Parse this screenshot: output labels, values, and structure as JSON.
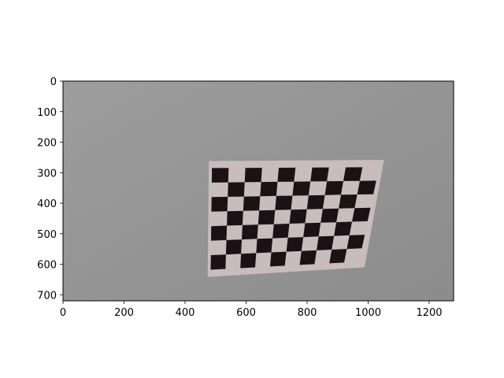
{
  "figure": {
    "image_description_tag": "wall-with-checkerboard-calibration-pattern",
    "x_ticks": [
      "0",
      "200",
      "400",
      "600",
      "800",
      "1000",
      "1200"
    ],
    "y_ticks": [
      "0",
      "100",
      "200",
      "300",
      "400",
      "500",
      "600",
      "700"
    ],
    "x_range": [
      0,
      1280
    ],
    "y_range": [
      0,
      720
    ],
    "x_tick_values": [
      0,
      200,
      400,
      600,
      800,
      1000,
      1200
    ],
    "y_tick_values": [
      0,
      100,
      200,
      300,
      400,
      500,
      600,
      700
    ]
  },
  "photo": {
    "wall_color": "#9a9a9b",
    "paper_color": "#c8bcbe",
    "square_color": "#1a1214",
    "board_corners_data_units": {
      "top_left": [
        478,
        262
      ],
      "top_right": [
        1052,
        258
      ],
      "bottom_right": [
        988,
        610
      ],
      "bottom_left": [
        474,
        642
      ]
    },
    "grid_corners_data_units": {
      "top_left": [
        488,
        285
      ],
      "top_right": [
        1036,
        282
      ],
      "bottom_right": [
        970,
        592
      ],
      "bottom_left": [
        484,
        618
      ]
    },
    "grid_columns": 10,
    "grid_rows": 7
  }
}
